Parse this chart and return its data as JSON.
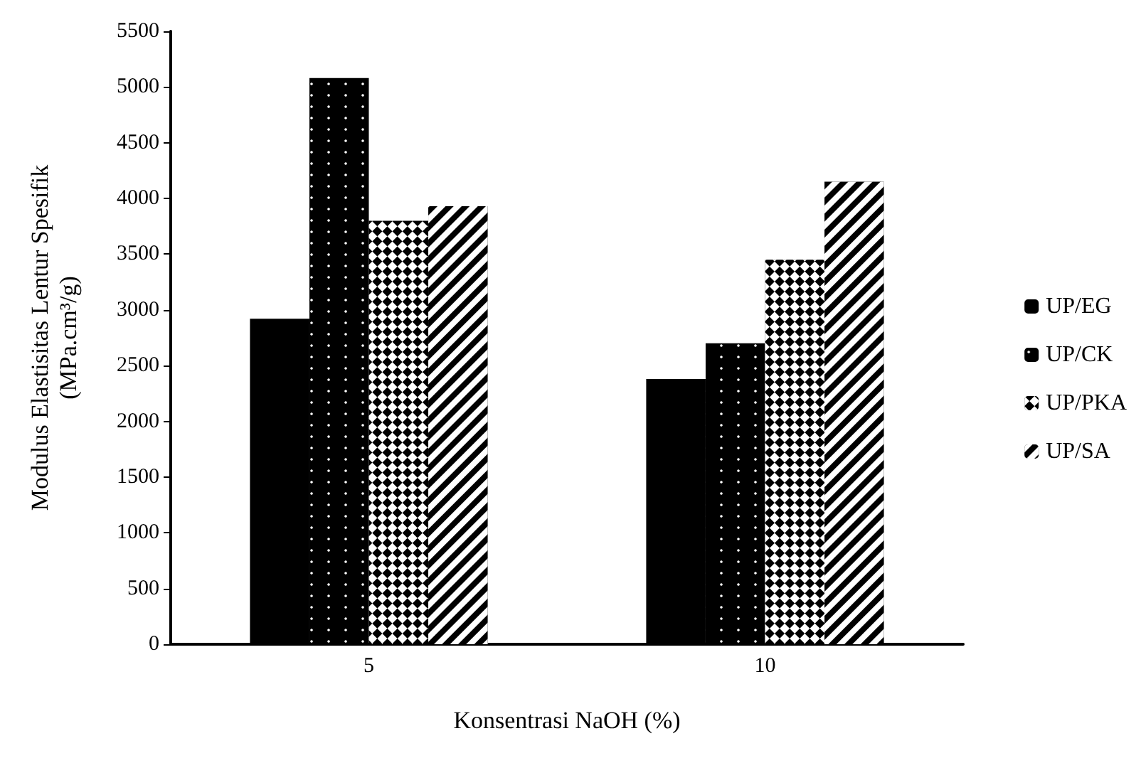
{
  "chart_data": {
    "type": "bar",
    "xlabel": "Konsentrasi NaOH (%)",
    "ylabel": "Modulus Elastisitas Lentur Spesifik\n(MPa.cm³/g)",
    "categories": [
      "5",
      "10"
    ],
    "series": [
      {
        "name": "UP/EG",
        "color": "#000000",
        "values": [
          2920,
          2380
        ]
      },
      {
        "name": "UP/CK",
        "color": "#000000",
        "values": [
          5080,
          2700
        ]
      },
      {
        "name": "UP/PKA",
        "color": "#000000",
        "values": [
          3800,
          3450
        ]
      },
      {
        "name": "UP/SA",
        "color": "#000000",
        "values": [
          3930,
          4150
        ]
      }
    ],
    "ylim": [
      0,
      5500
    ],
    "yticks": [
      0,
      500,
      1000,
      1500,
      2000,
      2500,
      3000,
      3500,
      4000,
      4500,
      5000,
      5500
    ],
    "grid": false,
    "legend": "right"
  }
}
